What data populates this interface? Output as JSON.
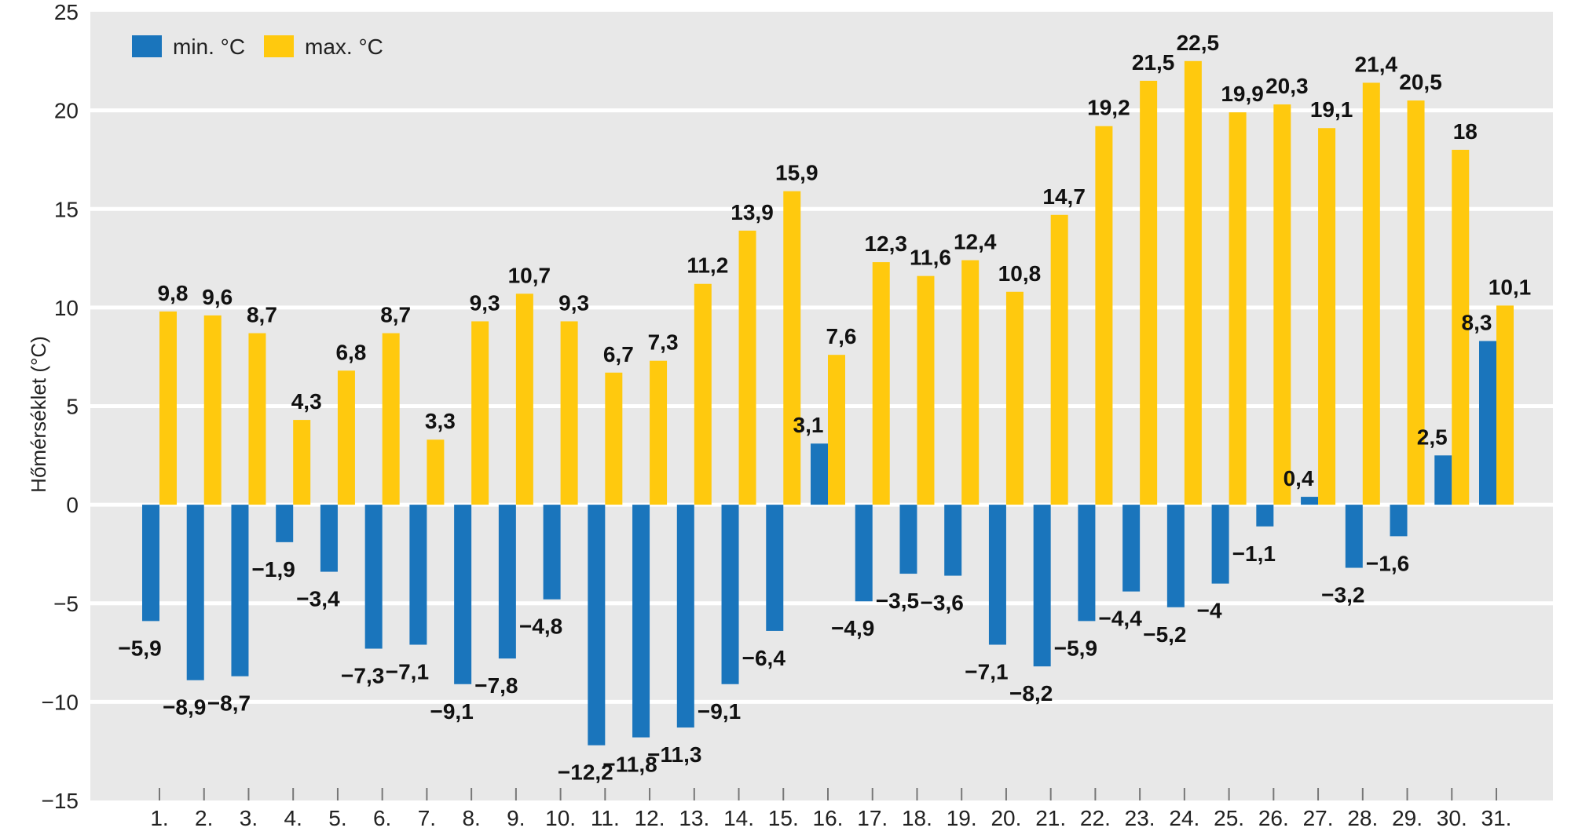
{
  "chart_data": {
    "type": "bar",
    "ylabel": "Hőmérséklet (°C)",
    "xlabel": "",
    "ylim": [
      -15,
      25
    ],
    "yticks": [
      "25",
      "20",
      "15",
      "10",
      "5",
      "0",
      "−5",
      "−10",
      "−15"
    ],
    "ytick_values": [
      25,
      20,
      15,
      10,
      5,
      0,
      -5,
      -10,
      -15
    ],
    "grid": true,
    "legend_position": "top-left",
    "categories": [
      "1.",
      "2.",
      "3.",
      "4.",
      "5.",
      "6.",
      "7.",
      "8.",
      "9.",
      "10.",
      "11.",
      "12.",
      "13.",
      "14.",
      "15.",
      "16.",
      "17.",
      "18.",
      "19.",
      "20.",
      "21.",
      "22.",
      "23.",
      "24.",
      "25.",
      "26.",
      "27.",
      "28.",
      "29.",
      "30.",
      "31."
    ],
    "series": [
      {
        "name": "min. °C",
        "color": "#1a75bc",
        "values": [
          -5.9,
          -8.9,
          -8.7,
          -1.9,
          -3.4,
          -7.3,
          -7.1,
          -9.1,
          -7.8,
          -4.8,
          -12.2,
          -11.8,
          -11.3,
          -9.1,
          -6.4,
          3.1,
          -4.9,
          -3.5,
          -3.6,
          -7.1,
          -8.2,
          -5.9,
          -4.4,
          -5.2,
          -4,
          -1.1,
          0.4,
          -3.2,
          -1.6,
          2.5,
          8.3
        ],
        "labels": [
          "−5,9",
          "−8,9",
          "−8,7",
          "−1,9",
          "−3,4",
          "−7,3",
          "−7,1",
          "−9,1",
          "−7,8",
          "−4,8",
          "−12,2",
          "−11,8",
          "−11,3",
          "−9,1",
          "−6,4",
          "3,1",
          "−4,9",
          "−3,5",
          "−3,6",
          "−7,1",
          "−8,2",
          "−5,9",
          "−4,4",
          "−5,2",
          "−4",
          "−1,1",
          "0,4",
          "−3,2",
          "−1,6",
          "2,5",
          "8,3"
        ]
      },
      {
        "name": "max. °C",
        "color": "#ffc90e",
        "values": [
          9.8,
          9.6,
          8.7,
          4.3,
          6.8,
          8.7,
          3.3,
          9.3,
          10.7,
          9.3,
          6.7,
          7.3,
          11.2,
          13.9,
          15.9,
          7.6,
          12.3,
          11.6,
          12.4,
          10.8,
          14.7,
          19.2,
          21.5,
          22.5,
          19.9,
          20.3,
          19.1,
          21.4,
          20.5,
          18,
          10.1
        ],
        "labels": [
          "9,8",
          "9,6",
          "8,7",
          "4,3",
          "6,8",
          "8,7",
          "3,3",
          "9,3",
          "10,7",
          "9,3",
          "6,7",
          "7,3",
          "11,2",
          "13,9",
          "15,9",
          "7,6",
          "12,3",
          "11,6",
          "12,4",
          "10,8",
          "14,7",
          "19,2",
          "21,5",
          "22,5",
          "19,9",
          "20,3",
          "19,1",
          "21,4",
          "20,5",
          "18",
          "10,1"
        ]
      }
    ],
    "colors": {
      "plot_background": "#e8e8e8",
      "gridline": "#ffffff",
      "text": "#222222"
    }
  }
}
